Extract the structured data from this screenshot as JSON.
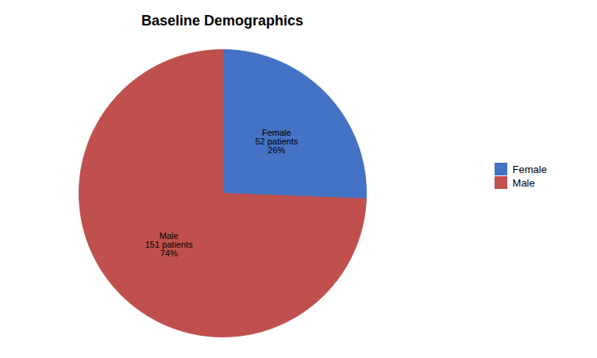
{
  "chart_data": {
    "type": "pie",
    "title": "Baseline Demographics",
    "categories": [
      "Female",
      "Male"
    ],
    "values": [
      52,
      151
    ],
    "value_labels": [
      "Female\n52 patients\n26%",
      "Male\n151 patients\n74%"
    ],
    "colors": [
      "#4472C4",
      "#C0504D"
    ],
    "data_labels": true,
    "legend": "right"
  }
}
